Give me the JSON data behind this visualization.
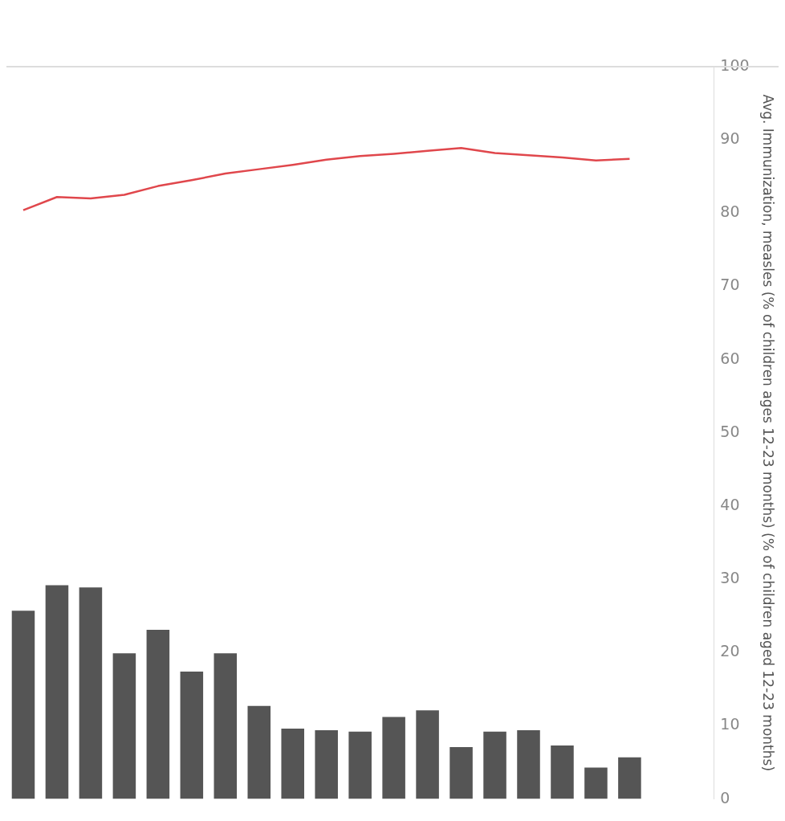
{
  "chart_data": {
    "type": "bar",
    "ylabel": "Avg. Immunization, measles (% of children ages 12-23 months) (% of children aged 12-23 months)",
    "categories": [
      null,
      null,
      null,
      null,
      null,
      null,
      null,
      null,
      null,
      null,
      null,
      null,
      null,
      null,
      null,
      null,
      null,
      null,
      null,
      null,
      null
    ],
    "series": [
      {
        "color": "#555555",
        "values": [
          25.7,
          29.2,
          28.9,
          19.9,
          23.1,
          17.4,
          19.9,
          12.7,
          9.6,
          9.4,
          9.2,
          11.2,
          12.1,
          7.1,
          9.2,
          9.4,
          7.3,
          4.3,
          5.7,
          null,
          null
        ]
      },
      {
        "type": "line",
        "color": "#e0474c",
        "values": [
          80.4,
          82.2,
          82.0,
          82.5,
          83.7,
          84.5,
          85.4,
          86.0,
          86.6,
          87.3,
          87.8,
          88.1,
          88.5,
          88.9,
          88.2,
          87.9,
          87.6,
          87.2,
          87.4,
          null,
          null
        ]
      }
    ],
    "ylim": [
      0,
      100
    ],
    "yticks": [
      0,
      10,
      20,
      30,
      40,
      50,
      60,
      70,
      80,
      90,
      100
    ],
    "grid": false,
    "legend": false,
    "marker": "none"
  }
}
